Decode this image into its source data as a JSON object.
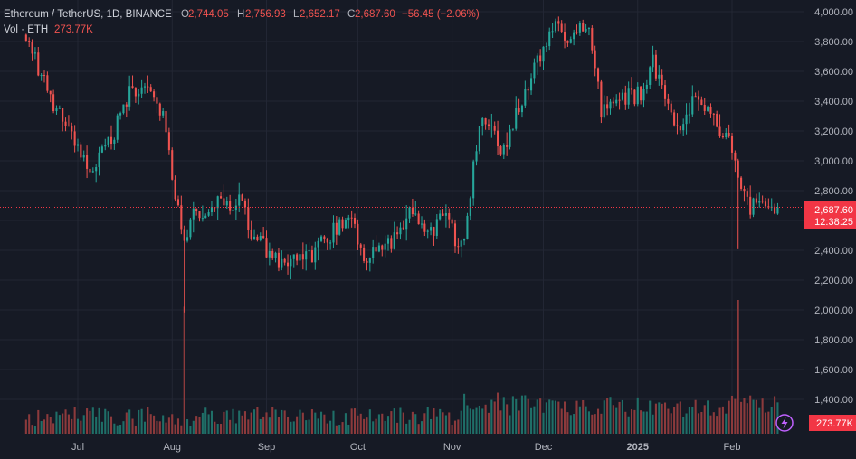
{
  "header": {
    "symbol": "Ethereum / TetherUS, 1D, BINANCE",
    "o_label": "O",
    "o_value": "2,744.05",
    "h_label": "H",
    "h_value": "2,756.93",
    "l_label": "L",
    "l_value": "2,652.17",
    "c_label": "C",
    "c_value": "2,687.60",
    "change": "−56.45 (−2.06%)",
    "vol_label": "Vol · ETH",
    "vol_value": "273.77K"
  },
  "price_axis": {
    "ticks": [
      "4,000.00",
      "3,800.00",
      "3,600.00",
      "3,400.00",
      "3,200.00",
      "3,000.00",
      "2,800.00",
      "2,600.00",
      "2,400.00",
      "2,200.00",
      "2,000.00",
      "1,800.00",
      "1,600.00",
      "1,400.00"
    ],
    "tick_values": [
      4000,
      3800,
      3600,
      3400,
      3200,
      3000,
      2800,
      2600,
      2400,
      2200,
      2000,
      1800,
      1600,
      1400
    ],
    "last_price_label": "2,687.60",
    "countdown_label": "12:38:25",
    "volume_badge": "273.77K"
  },
  "time_axis": {
    "labels": [
      "Jul",
      "Aug",
      "Sep",
      "Oct",
      "Nov",
      "Dec",
      "2025",
      "Feb"
    ]
  },
  "colors": {
    "background": "#161a25",
    "grid": "#232734",
    "up": "#26a69a",
    "down": "#ef5350",
    "up_vol": "#1f6f68",
    "down_vol": "#8c3a3c",
    "text": "#b2b5be",
    "last_price_bg": "#f23645",
    "lightning": "#c061ff"
  },
  "icons": {
    "lightning": "lightning-icon"
  },
  "chart_data": {
    "type": "candlestick",
    "title": "Ethereum / TetherUS, 1D, BINANCE",
    "ylim": [
      1300,
      4000
    ],
    "y_scale": "linear",
    "last_price": 2687.6,
    "grid": true,
    "anchors": [
      {
        "x": "Jun 14",
        "price": 3800
      },
      {
        "x": "Jun 24",
        "price": 3350
      },
      {
        "x": "Jul 4",
        "price": 2950
      },
      {
        "x": "Jul 11",
        "price": 3100
      },
      {
        "x": "Jul 18",
        "price": 3450
      },
      {
        "x": "Jul 23",
        "price": 3500
      },
      {
        "x": "Jul 29",
        "price": 3300
      },
      {
        "x": "Aug 5",
        "price": 2400
      },
      {
        "x": "Aug 8",
        "price": 2650
      },
      {
        "x": "Aug 23",
        "price": 2750
      },
      {
        "x": "Aug 27",
        "price": 2500
      },
      {
        "x": "Sep 6",
        "price": 2300
      },
      {
        "x": "Sep 15",
        "price": 2350
      },
      {
        "x": "Sep 29",
        "price": 2650
      },
      {
        "x": "Oct 3",
        "price": 2350
      },
      {
        "x": "Oct 10",
        "price": 2400
      },
      {
        "x": "Oct 18",
        "price": 2650
      },
      {
        "x": "Oct 24",
        "price": 2500
      },
      {
        "x": "Oct 29",
        "price": 2650
      },
      {
        "x": "Nov 4",
        "price": 2400
      },
      {
        "x": "Nov 10",
        "price": 3200
      },
      {
        "x": "Nov 12",
        "price": 3300
      },
      {
        "x": "Nov 17",
        "price": 3050
      },
      {
        "x": "Nov 22",
        "price": 3300
      },
      {
        "x": "Nov 28",
        "price": 3600
      },
      {
        "x": "Dec 6",
        "price": 3950
      },
      {
        "x": "Dec 9",
        "price": 3750
      },
      {
        "x": "Dec 15",
        "price": 3950
      },
      {
        "x": "Dec 20",
        "price": 3350
      },
      {
        "x": "Dec 25",
        "price": 3400
      },
      {
        "x": "Jan 2",
        "price": 3450
      },
      {
        "x": "Jan 6",
        "price": 3650
      },
      {
        "x": "Jan 13",
        "price": 3200
      },
      {
        "x": "Jan 19",
        "price": 3400
      },
      {
        "x": "Jan 26",
        "price": 3300
      },
      {
        "x": "Feb 1",
        "price": 3100
      },
      {
        "x": "Feb 3",
        "price": 2850
      },
      {
        "x": "Feb 6",
        "price": 2700
      },
      {
        "x": "Feb 13",
        "price": 2680
      },
      {
        "x": "Feb 16",
        "price": 2690
      }
    ],
    "volume": {
      "last": "273.77K",
      "spikes": [
        {
          "x": "Aug 5",
          "relative_height": 0.95
        },
        {
          "x": "Feb 3",
          "relative_height": 1.0
        }
      ]
    }
  }
}
